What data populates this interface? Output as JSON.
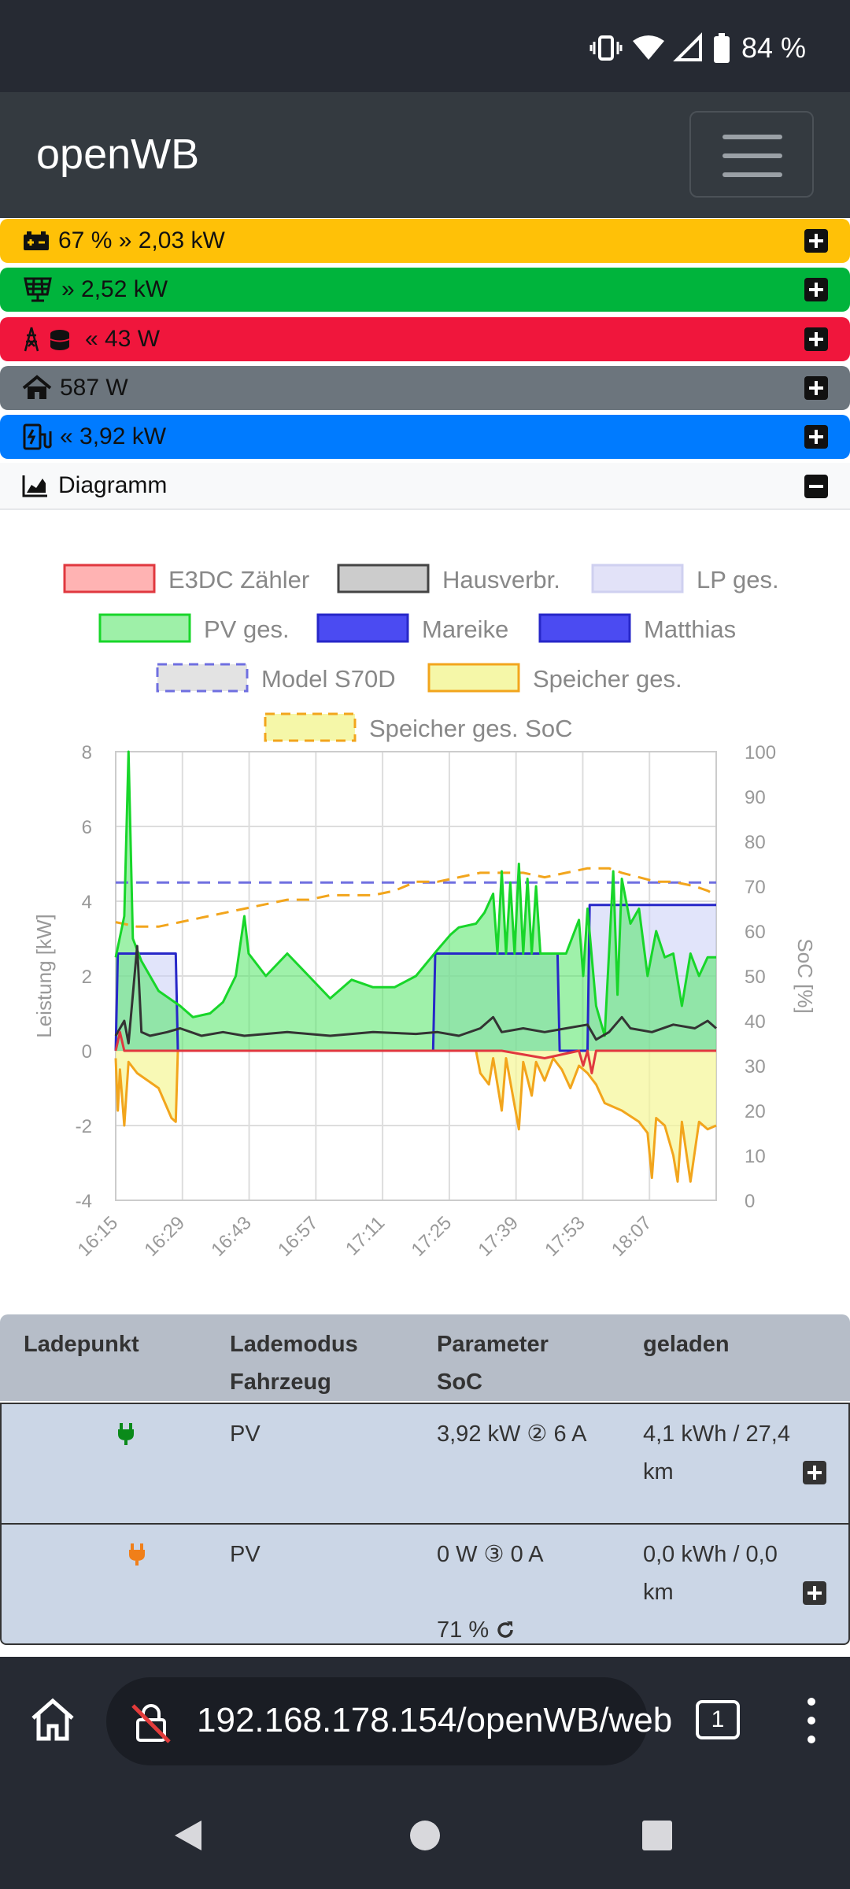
{
  "status": {
    "battery": "84 %"
  },
  "app": {
    "title": "openWB"
  },
  "bars": [
    {
      "label": "67 % » 2,03 kW",
      "color": "#ffc107",
      "icon": "battery-icon"
    },
    {
      "label": "» 2,52 kW",
      "color": "#00b43c",
      "icon": "solar-panel-icon"
    },
    {
      "label": "« 43 W",
      "color": "#f0163c",
      "icon": "grid-tower-icon"
    },
    {
      "label": "587 W",
      "color": "#6c757d",
      "icon": "home-icon"
    },
    {
      "label": "« 3,92 kW",
      "color": "#007bff",
      "icon": "charging-station-icon"
    }
  ],
  "diagram": {
    "title": "Diagramm"
  },
  "chart_data": {
    "type": "line",
    "ylabel": "Leistung [kW]",
    "y2label": "SoC [%]",
    "ylim": [
      -4,
      8
    ],
    "y2lim": [
      0,
      100
    ],
    "yticks": [
      "8",
      "6",
      "4",
      "2",
      "0",
      "-2",
      "-4"
    ],
    "y2ticks": [
      "100",
      "90",
      "80",
      "70",
      "60",
      "50",
      "40",
      "30",
      "20",
      "10",
      "0"
    ],
    "xticks": [
      "16:15",
      "16:29",
      "16:43",
      "16:57",
      "17:11",
      "17:25",
      "17:39",
      "17:53",
      "18:07"
    ],
    "legend": [
      {
        "name": "E3DC Zähler",
        "fill": "#ffb3b3",
        "stroke": "#e0383f",
        "dashed": false
      },
      {
        "name": "Hausverbr.",
        "fill": "#cccccc",
        "stroke": "#444444",
        "dashed": false
      },
      {
        "name": "LP ges.",
        "fill": "#e2e2f8",
        "stroke": "#cfd0f0",
        "dashed": false
      },
      {
        "name": "PV ges.",
        "fill": "#9ef0a8",
        "stroke": "#18d62a",
        "dashed": false
      },
      {
        "name": "Mareike",
        "fill": "#4b4bf2",
        "stroke": "#2727c8",
        "dashed": false
      },
      {
        "name": "Matthias",
        "fill": "#4b4bf2",
        "stroke": "#2727c8",
        "dashed": false
      },
      {
        "name": "Model S70D",
        "fill": "#e3e3e3",
        "stroke": "#6f6fe0",
        "dashed": true
      },
      {
        "name": "Speicher ges.",
        "fill": "#f5f7a8",
        "stroke": "#f2a51c",
        "dashed": false
      },
      {
        "name": "Speicher ges. SoC",
        "fill": "#f5f7a8",
        "stroke": "#f2a51c",
        "dashed": true
      }
    ],
    "series": {
      "pv": [
        [
          0,
          2.5
        ],
        [
          2,
          3.6
        ],
        [
          3,
          8.0
        ],
        [
          4,
          3.0
        ],
        [
          6,
          2.4
        ],
        [
          10,
          1.6
        ],
        [
          15,
          1.2
        ],
        [
          18,
          0.9
        ],
        [
          22,
          1.0
        ],
        [
          25,
          1.3
        ],
        [
          28,
          2.0
        ],
        [
          30,
          3.6
        ],
        [
          31,
          2.6
        ],
        [
          35,
          2.0
        ],
        [
          40,
          2.6
        ],
        [
          45,
          2.0
        ],
        [
          50,
          1.4
        ],
        [
          55,
          1.9
        ],
        [
          60,
          1.7
        ],
        [
          65,
          1.7
        ],
        [
          70,
          2.0
        ],
        [
          75,
          2.7
        ],
        [
          78,
          3.1
        ],
        [
          80,
          3.3
        ],
        [
          84,
          3.4
        ],
        [
          86,
          3.7
        ],
        [
          88,
          4.2
        ],
        [
          89,
          2.6
        ],
        [
          90,
          4.8
        ],
        [
          91,
          2.6
        ],
        [
          92,
          4.5
        ],
        [
          93,
          2.6
        ],
        [
          94,
          5.0
        ],
        [
          95,
          2.6
        ],
        [
          96,
          4.6
        ],
        [
          97,
          2.6
        ],
        [
          98,
          4.4
        ],
        [
          99,
          2.6
        ],
        [
          100,
          2.6
        ],
        [
          105,
          2.6
        ],
        [
          108,
          3.5
        ],
        [
          109,
          2.0
        ],
        [
          110,
          3.8
        ],
        [
          112,
          1.2
        ],
        [
          114,
          0.4
        ],
        [
          116,
          4.8
        ],
        [
          117,
          1.5
        ],
        [
          118,
          4.6
        ],
        [
          120,
          3.4
        ],
        [
          122,
          3.8
        ],
        [
          124,
          2.0
        ],
        [
          126,
          3.2
        ],
        [
          128,
          2.5
        ],
        [
          130,
          2.6
        ],
        [
          132,
          1.2
        ],
        [
          134,
          2.6
        ],
        [
          136,
          2.0
        ],
        [
          138,
          2.5
        ],
        [
          140,
          2.5
        ]
      ],
      "haus": [
        [
          0,
          0.4
        ],
        [
          2,
          0.8
        ],
        [
          3,
          0.2
        ],
        [
          5,
          2.8
        ],
        [
          6,
          0.5
        ],
        [
          8,
          0.4
        ],
        [
          12,
          0.5
        ],
        [
          15,
          0.6
        ],
        [
          20,
          0.4
        ],
        [
          25,
          0.5
        ],
        [
          30,
          0.4
        ],
        [
          40,
          0.5
        ],
        [
          50,
          0.4
        ],
        [
          60,
          0.5
        ],
        [
          70,
          0.45
        ],
        [
          75,
          0.5
        ],
        [
          80,
          0.4
        ],
        [
          85,
          0.6
        ],
        [
          88,
          0.9
        ],
        [
          90,
          0.5
        ],
        [
          95,
          0.6
        ],
        [
          100,
          0.5
        ],
        [
          105,
          0.6
        ],
        [
          110,
          0.7
        ],
        [
          112,
          0.3
        ],
        [
          115,
          0.5
        ],
        [
          118,
          0.9
        ],
        [
          120,
          0.6
        ],
        [
          125,
          0.5
        ],
        [
          130,
          0.7
        ],
        [
          135,
          0.6
        ],
        [
          138,
          0.8
        ],
        [
          140,
          0.6
        ]
      ],
      "grid": [
        [
          0,
          0.0
        ],
        [
          1,
          0.5
        ],
        [
          2,
          0.0
        ],
        [
          40,
          0.0
        ],
        [
          90,
          0.0
        ],
        [
          100,
          -0.2
        ],
        [
          108,
          0.0
        ],
        [
          109,
          -0.4
        ],
        [
          110,
          0.0
        ],
        [
          111,
          -0.6
        ],
        [
          112,
          0.0
        ],
        [
          140,
          0.0
        ]
      ],
      "lp": [
        [
          0,
          0.0
        ],
        [
          0.5,
          2.6
        ],
        [
          14,
          2.6
        ],
        [
          14.5,
          0.0
        ],
        [
          74,
          0.0
        ],
        [
          74.5,
          2.6
        ],
        [
          103,
          2.6
        ],
        [
          103.5,
          0.0
        ],
        [
          110,
          0.0
        ],
        [
          110.5,
          3.9
        ],
        [
          118,
          3.9
        ],
        [
          140,
          3.9
        ]
      ],
      "speicher": [
        [
          0,
          -0.2
        ],
        [
          0.5,
          -1.6
        ],
        [
          1,
          -0.5
        ],
        [
          2,
          -2.0
        ],
        [
          3,
          -0.3
        ],
        [
          5,
          -0.6
        ],
        [
          10,
          -1.0
        ],
        [
          13,
          -1.8
        ],
        [
          14,
          -1.9
        ],
        [
          14.5,
          0.0
        ],
        [
          84,
          0.0
        ],
        [
          85,
          -0.6
        ],
        [
          87,
          -0.9
        ],
        [
          88,
          -0.2
        ],
        [
          90,
          -1.6
        ],
        [
          91,
          -0.2
        ],
        [
          94,
          -2.1
        ],
        [
          95,
          -0.3
        ],
        [
          97,
          -1.2
        ],
        [
          98,
          -0.3
        ],
        [
          100,
          -0.8
        ],
        [
          102,
          -0.2
        ],
        [
          104,
          -0.5
        ],
        [
          106,
          -1.0
        ],
        [
          108,
          -0.4
        ],
        [
          110,
          -0.6
        ],
        [
          112,
          -0.9
        ],
        [
          114,
          -1.4
        ],
        [
          118,
          -1.6
        ],
        [
          122,
          -1.9
        ],
        [
          124,
          -2.2
        ],
        [
          125,
          -3.4
        ],
        [
          126,
          -1.8
        ],
        [
          128,
          -2.0
        ],
        [
          130,
          -2.8
        ],
        [
          131,
          -3.5
        ],
        [
          132,
          -1.9
        ],
        [
          134,
          -3.5
        ],
        [
          136,
          -1.9
        ],
        [
          138,
          -2.1
        ],
        [
          140,
          -2.0
        ]
      ],
      "soc": [
        [
          0,
          62
        ],
        [
          5,
          61
        ],
        [
          10,
          61
        ],
        [
          15,
          62
        ],
        [
          20,
          63
        ],
        [
          25,
          64
        ],
        [
          30,
          65
        ],
        [
          35,
          66
        ],
        [
          40,
          67
        ],
        [
          45,
          67
        ],
        [
          50,
          68
        ],
        [
          55,
          68
        ],
        [
          60,
          68
        ],
        [
          65,
          69
        ],
        [
          70,
          71
        ],
        [
          75,
          71
        ],
        [
          80,
          72
        ],
        [
          85,
          73
        ],
        [
          90,
          73
        ],
        [
          95,
          73
        ],
        [
          100,
          72
        ],
        [
          105,
          73
        ],
        [
          110,
          74
        ],
        [
          115,
          74
        ],
        [
          118,
          73
        ],
        [
          122,
          72
        ],
        [
          126,
          71
        ],
        [
          130,
          71
        ],
        [
          135,
          70
        ],
        [
          138,
          69
        ],
        [
          140,
          68
        ]
      ],
      "model_s70d_level": [
        [
          0,
          4.5
        ],
        [
          140,
          4.5
        ]
      ]
    }
  },
  "table": {
    "headers": [
      {
        "line1": "Ladepunkt",
        "line2": ""
      },
      {
        "line1": "Lademodus",
        "line2": "Fahrzeug"
      },
      {
        "line1": "Parameter",
        "line2": "SoC"
      },
      {
        "line1": "geladen",
        "line2": ""
      }
    ],
    "rows": [
      {
        "mode": "PV",
        "param": "3,92 kW ② 6 A",
        "charged1": "4,1 kWh / 27,4",
        "charged2": "km",
        "soc": "",
        "plug_color": "#0a8a1a"
      },
      {
        "mode": "PV",
        "param": "0 W ③ 0 A",
        "charged1": "0,0 kWh / 0,0",
        "charged2": "km",
        "soc": "71 %",
        "plug_color": "#f07f19"
      }
    ]
  },
  "browser": {
    "url": "192.168.178.154/openWB/web",
    "tab_count": "1"
  }
}
